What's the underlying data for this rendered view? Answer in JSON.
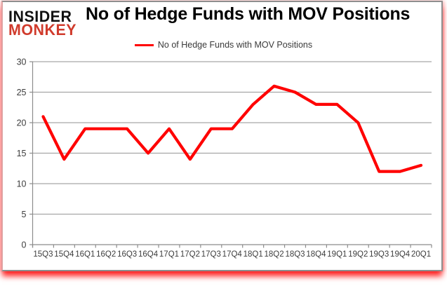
{
  "logo": {
    "line1": "INSIDER",
    "line2": "MONKEY"
  },
  "header": {
    "title": "No of Hedge Funds with MOV Positions"
  },
  "legend": {
    "label": "No of Hedge Funds with MOV Positions",
    "line_color": "#ff0000"
  },
  "colors": {
    "series_line": "#ff0000",
    "gridline": "#a6a6a6",
    "axis": "#8c8c8c",
    "tick_text": "#3d3d3d",
    "logo_accent": "#d03b2c",
    "frame_glow": "#ff0000"
  },
  "chart_data": {
    "type": "line",
    "title": "No of Hedge Funds with MOV Positions",
    "series": [
      {
        "name": "No of Hedge Funds with MOV Positions",
        "values": [
          21,
          14,
          19,
          19,
          19,
          15,
          19,
          14,
          19,
          19,
          23,
          26,
          25,
          23,
          23,
          20,
          12,
          12,
          13
        ]
      }
    ],
    "categories": [
      "15Q3",
      "15Q4",
      "16Q1",
      "16Q2",
      "16Q3",
      "16Q4",
      "17Q1",
      "17Q2",
      "17Q3",
      "17Q4",
      "18Q1",
      "18Q2",
      "18Q3",
      "18Q4",
      "19Q1",
      "19Q2",
      "19Q3",
      "19Q4",
      "20Q1"
    ],
    "xlabel": "",
    "ylabel": "",
    "ylim": [
      0,
      30
    ],
    "y_ticks": [
      0,
      5,
      10,
      15,
      20,
      25,
      30
    ],
    "grid": true,
    "legend_position": "top"
  }
}
